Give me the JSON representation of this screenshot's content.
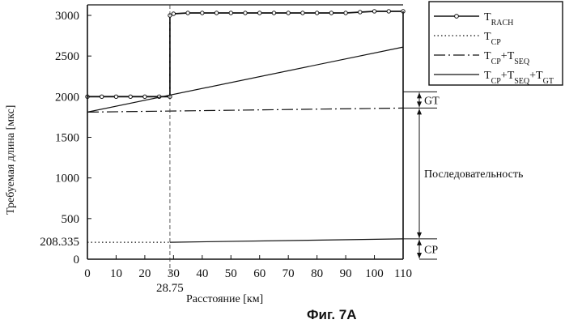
{
  "chart_data": {
    "type": "line",
    "caption": "Фиг. 7А",
    "xlabel": "Расстояние [км]",
    "ylabel": "Требуемая длина [мкс]",
    "xlim": [
      0,
      110
    ],
    "ylim": [
      0,
      3100
    ],
    "x_ticks": [
      "0",
      "10",
      "20",
      "30",
      "40",
      "50",
      "60",
      "70",
      "80",
      "90",
      "100",
      "110"
    ],
    "y_ticks": [
      "0",
      "500",
      "1000",
      "1500",
      "2000",
      "2500",
      "3000"
    ],
    "extra_x_tick": {
      "value": 28.75,
      "label": "28.75"
    },
    "extra_y_tick": {
      "value": 208.335,
      "label": "208.335"
    },
    "legend": {
      "position": "top-right",
      "entries": [
        {
          "key": "rach",
          "main": "T",
          "sub": "RACH",
          "style": "solid-marker"
        },
        {
          "key": "cp",
          "main": "T",
          "sub": "CP",
          "style": "dotted"
        },
        {
          "key": "cp_seq",
          "parts": [
            [
              "T",
              "CP"
            ],
            [
              "+T",
              "SEQ"
            ]
          ],
          "style": "dashdot"
        },
        {
          "key": "cp_seq_gt",
          "parts": [
            [
              "T",
              "CP"
            ],
            [
              "+T",
              "SEQ"
            ],
            [
              "+T",
              "GT"
            ]
          ],
          "style": "solid"
        }
      ]
    },
    "series": [
      {
        "key": "rach",
        "style": "solid-marker",
        "x": [
          0,
          5,
          10,
          15,
          20,
          25,
          28.75,
          28.75,
          30,
          35,
          40,
          45,
          50,
          55,
          60,
          65,
          70,
          75,
          80,
          85,
          90,
          95,
          100,
          105,
          110
        ],
        "y": [
          2000,
          2000,
          2000,
          2000,
          2000,
          2000,
          2000,
          3000,
          3020,
          3030,
          3030,
          3030,
          3030,
          3030,
          3030,
          3030,
          3030,
          3030,
          3030,
          3030,
          3030,
          3040,
          3050,
          3050,
          3050
        ]
      },
      {
        "key": "cp",
        "style": "dotted",
        "x": [
          0,
          28.75
        ],
        "y": [
          208.335,
          208.335
        ]
      },
      {
        "key": "cp",
        "style": "solid",
        "x": [
          28.75,
          110
        ],
        "y": [
          208.335,
          250
        ]
      },
      {
        "key": "cp_seq",
        "style": "dashdot",
        "x": [
          0,
          110
        ],
        "y": [
          1810,
          1860
        ]
      },
      {
        "key": "cp_seq_gt",
        "style": "solid",
        "x": [
          0,
          110
        ],
        "y": [
          1810,
          2610
        ]
      }
    ],
    "annotations": [
      {
        "text": "GT",
        "from": 1860,
        "to": 2060
      },
      {
        "text": "Последовательность",
        "from": 250,
        "to": 1860
      },
      {
        "text": "CP",
        "from": 0,
        "to": 250
      }
    ]
  }
}
